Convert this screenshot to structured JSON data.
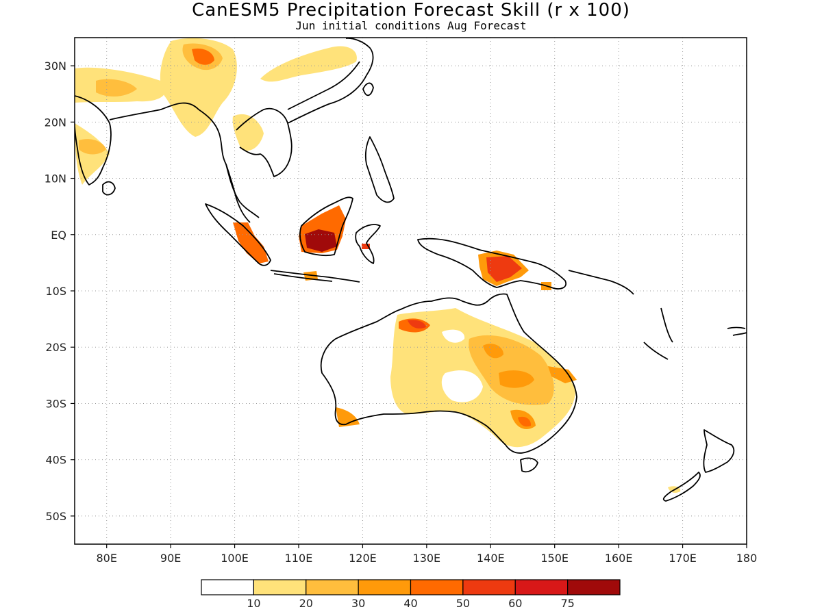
{
  "header": {
    "title": "CanESM5 Precipitation Forecast Skill (r x 100)",
    "subtitle": "Jun initial conditions  Aug Forecast"
  },
  "map": {
    "lon_range": [
      75,
      180
    ],
    "lat_range": [
      -55,
      35
    ],
    "lon_ticks": [
      80,
      90,
      100,
      110,
      120,
      130,
      140,
      150,
      160,
      170,
      180
    ],
    "lon_labels": [
      "80E",
      "90E",
      "100E",
      "110E",
      "120E",
      "130E",
      "140E",
      "150E",
      "160E",
      "170E",
      "180"
    ],
    "lat_ticks": [
      30,
      20,
      10,
      0,
      -10,
      -20,
      -30,
      -40,
      -50
    ],
    "lat_labels": [
      "30N",
      "20N",
      "10N",
      "EQ",
      "10S",
      "20S",
      "30S",
      "40S",
      "50S"
    ],
    "grid": "dotted"
  },
  "colorbar": {
    "labels": [
      "10",
      "20",
      "30",
      "40",
      "50",
      "60",
      "75"
    ],
    "colors": [
      "#ffffff",
      "#ffe27a",
      "#ffbe3d",
      "#ff9a0a",
      "#ff6a00",
      "#ee3a10",
      "#d81818",
      "#a00a0a"
    ]
  }
}
